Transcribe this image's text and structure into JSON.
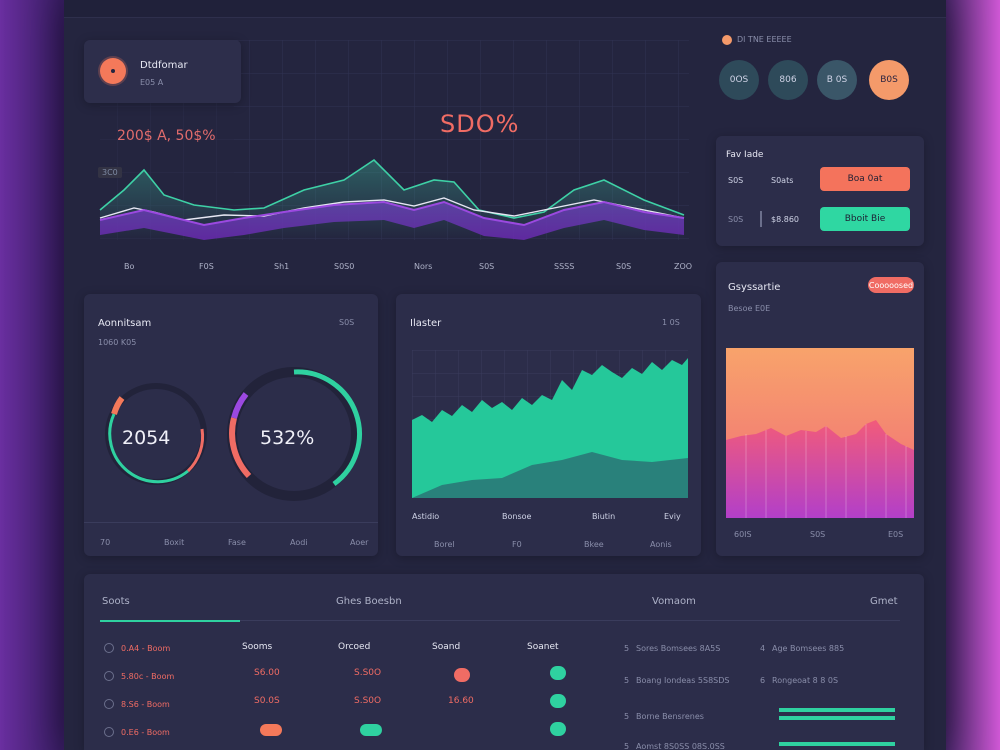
{
  "profile": {
    "name": "Dtdfomar",
    "sub": "E05 A"
  },
  "main_chart": {
    "kpi": "SDO%",
    "sub_kpi": "200$ A, 50$%",
    "y_tag": "3C0",
    "x_labels": [
      "Bo",
      "F0S",
      "Sh1",
      "S0S0",
      "Nors",
      "S0S",
      "SSSS",
      "S0S",
      "ZOO"
    ]
  },
  "right_panel": {
    "legend_label": "Dl TNE EEEEE",
    "circles": [
      "0OS",
      "806",
      "B 0S",
      "B0S"
    ],
    "title": "Fav Iade",
    "rows": [
      {
        "a": "S0S",
        "b": "S0ats",
        "btn": "Boa 0at"
      },
      {
        "a": "S0S",
        "b": "$8.860",
        "btn": "Bboit Bie"
      }
    ]
  },
  "card_donut": {
    "title": "Aonnitsam",
    "value": "S0S",
    "sub": "1060 K05",
    "left_value": "2054",
    "right_value": "532%",
    "footer": [
      "70",
      "Boxit",
      "Fase",
      "Aodi",
      "Aoer"
    ]
  },
  "card_area": {
    "title": "Ilaster",
    "value": "1 0S",
    "x_labels": [
      "Astidio",
      "Bonsoe",
      "Biutin",
      "Eviy"
    ],
    "footer": [
      "Borel",
      "F0",
      "Bkee",
      "Aonis"
    ]
  },
  "card_grad": {
    "title": "Gsyssartie",
    "sub": "Besoe E0E",
    "badge": "Cooooosed",
    "x_labels": [
      "60IS",
      "S0S",
      "E0S"
    ]
  },
  "table": {
    "tabs": [
      "Soots",
      "Ghes Boesbn",
      "Vomaom",
      "Gmet"
    ],
    "headers": [
      "Sooms",
      "Orcoed",
      "Soand",
      "Soanet"
    ],
    "rows": [
      {
        "label": "0.A4 - Boom",
        "c1": "",
        "c2": "",
        "c3": ""
      },
      {
        "label": "5.80c - Boom",
        "c1": "S6.00",
        "c2": "S.S0O",
        "c3": ""
      },
      {
        "label": "8.S6 - Boom",
        "c1": "S0.0S",
        "c2": "S.S0O",
        "c3": "16.60"
      },
      {
        "label": "0.E6 - Boom",
        "c1": "",
        "c2": "",
        "c3": ""
      }
    ],
    "right_list": [
      {
        "n": "5",
        "t": "Sores Bomsees 8A5S",
        "n2": "4",
        "t2": "Age Bomsees 885"
      },
      {
        "n": "5",
        "t": "Boang Iondeas 5S8SDS",
        "n2": "6",
        "t2": "Rongeoat 8 8 0S"
      },
      {
        "n": "5",
        "t": "Borne Bensrenes",
        "n2": "",
        "t2": ""
      },
      {
        "n": "5",
        "t": "Aomst 8S0SS 08S.0SS",
        "n2": "",
        "t2": ""
      }
    ]
  },
  "colors": {
    "accent_coral": "#f4795a",
    "accent_teal": "#2fd1a0",
    "accent_purple": "#8b3bd0",
    "panel": "#2c2d4a",
    "bg": "#24253f"
  }
}
